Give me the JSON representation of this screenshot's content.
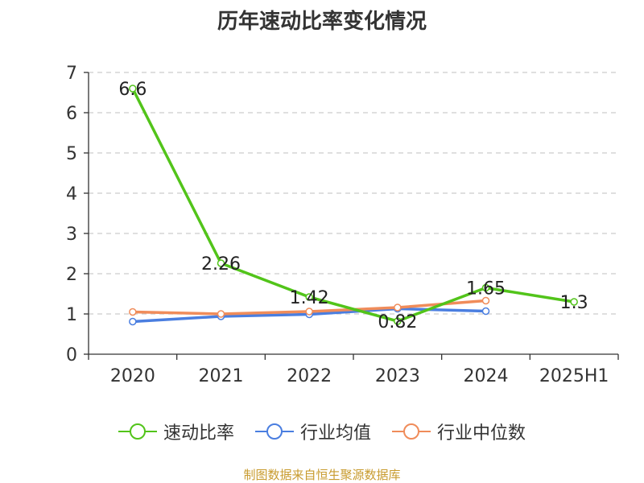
{
  "chart_data": {
    "type": "line",
    "title": "历年速动比率变化情况",
    "categories": [
      "2020",
      "2021",
      "2022",
      "2023",
      "2024",
      "2025H1"
    ],
    "y_ticks": [
      "0",
      "1",
      "2",
      "3",
      "4",
      "5",
      "6",
      "7"
    ],
    "ylim": [
      0,
      7
    ],
    "grid": true,
    "legend_position": "bottom",
    "series": [
      {
        "name": "速动比率",
        "color": "#52c41a",
        "values": [
          6.6,
          2.26,
          1.42,
          0.82,
          1.65,
          1.3
        ],
        "labels": [
          "6.6",
          "2.26",
          "1.42",
          "0.82",
          "1.65",
          "1.3"
        ]
      },
      {
        "name": "行业均值",
        "color": "#4a7ee0",
        "values": [
          0.81,
          0.94,
          0.99,
          1.13,
          1.07,
          null
        ]
      },
      {
        "name": "行业中位数",
        "color": "#f08c5a",
        "values": [
          1.05,
          1.0,
          1.06,
          1.16,
          1.33,
          null
        ]
      }
    ]
  },
  "source_text": "制图数据来自恒生聚源数据库"
}
